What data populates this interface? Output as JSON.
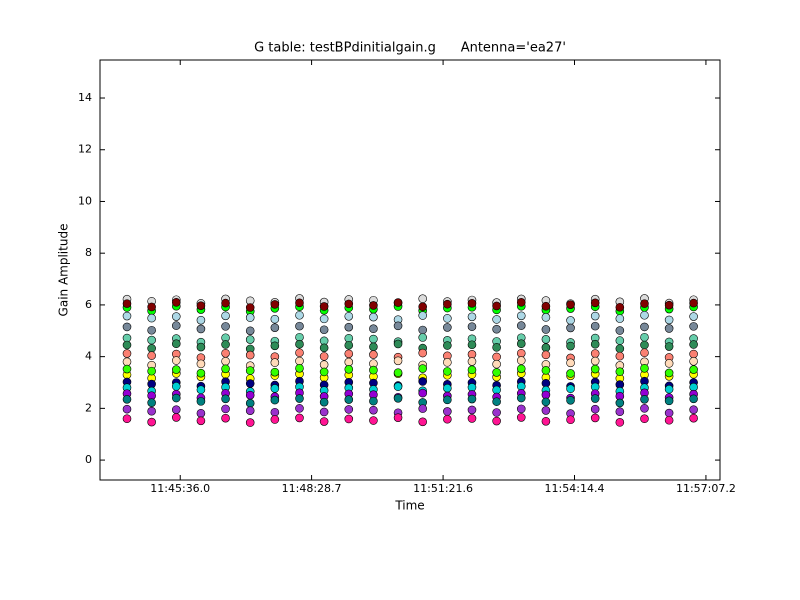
{
  "chart_data": {
    "type": "scatter",
    "title": "G table: testBPdinitialgain.g      Antenna='ea27'",
    "x_label": "Time",
    "y_label": "Gain Amplitude",
    "xlim": [
      42230.5,
      43045.7
    ],
    "ylim": [
      -0.77,
      15.47
    ],
    "xticks": [
      {
        "value": 42336,
        "label": "11:45:36.0"
      },
      {
        "value": 42508.7,
        "label": "11:48:28.7"
      },
      {
        "value": 42681.6,
        "label": "11:51:21.6"
      },
      {
        "value": 42854.4,
        "label": "11:54:14.4"
      },
      {
        "value": 43027.2,
        "label": "11:57:07.2"
      }
    ],
    "yticks": [
      0,
      2,
      4,
      6,
      8,
      10,
      12,
      14
    ],
    "x": [
      42266,
      42298.4,
      42330.8,
      42363.2,
      42395.6,
      42428,
      42460.4,
      42492.8,
      42525.2,
      42557.6,
      42590,
      42622.4,
      42654.8,
      42687.2,
      42719.6,
      42752,
      42784.4,
      42816.8,
      42849.2,
      42881.6,
      42914,
      42946.4,
      42978.8,
      43011
    ],
    "series": [
      {
        "color": "#dcdcdc",
        "values": [
          6.22,
          6.14,
          6.2,
          6.06,
          6.23,
          6.16,
          6.1,
          6.25,
          6.11,
          6.21,
          6.18,
          6.08,
          6.24,
          6.13,
          6.19,
          6.09,
          6.23,
          6.17,
          6.05,
          6.22,
          6.12,
          6.25,
          6.07,
          6.2
        ]
      },
      {
        "color": "#00ff00",
        "values": [
          5.9,
          5.77,
          5.95,
          5.82,
          5.92,
          5.75,
          5.87,
          5.93,
          5.79,
          5.89,
          5.83,
          5.94,
          5.78,
          5.88,
          5.91,
          5.81,
          5.95,
          5.8,
          5.86,
          5.93,
          5.76,
          5.9,
          5.84,
          5.92
        ]
      },
      {
        "color": "#800000",
        "values": [
          6.05,
          5.92,
          6.1,
          5.97,
          6.07,
          5.9,
          6.02,
          6.08,
          5.94,
          6.04,
          5.98,
          6.09,
          5.93,
          6.03,
          6.06,
          5.96,
          6.1,
          5.95,
          6.01,
          6.08,
          5.91,
          6.05,
          5.99,
          6.07
        ]
      },
      {
        "color": "#add8e6",
        "values": [
          5.57,
          5.49,
          5.55,
          5.41,
          5.58,
          5.51,
          5.45,
          5.6,
          5.46,
          5.56,
          5.53,
          5.43,
          5.59,
          5.48,
          5.54,
          5.44,
          5.58,
          5.52,
          5.4,
          5.57,
          5.47,
          5.6,
          5.42,
          5.55
        ]
      },
      {
        "color": "#778899",
        "values": [
          5.15,
          5.02,
          5.2,
          5.07,
          5.17,
          5.0,
          5.12,
          5.18,
          5.04,
          5.14,
          5.08,
          5.19,
          5.03,
          5.13,
          5.16,
          5.06,
          5.2,
          5.05,
          5.11,
          5.18,
          5.01,
          5.15,
          5.09,
          5.17
        ]
      },
      {
        "color": "#66cdaa",
        "values": [
          4.72,
          4.64,
          4.7,
          4.56,
          4.73,
          4.66,
          4.6,
          4.75,
          4.61,
          4.71,
          4.68,
          4.58,
          4.74,
          4.63,
          4.69,
          4.59,
          4.73,
          4.67,
          4.55,
          4.72,
          4.62,
          4.75,
          4.57,
          4.7
        ]
      },
      {
        "color": "#2e8b57",
        "values": [
          4.45,
          4.32,
          4.5,
          4.37,
          4.47,
          4.3,
          4.42,
          4.48,
          4.34,
          4.44,
          4.38,
          4.49,
          4.33,
          4.43,
          4.46,
          4.36,
          4.5,
          4.35,
          4.41,
          4.48,
          4.31,
          4.45,
          4.39,
          4.47
        ]
      },
      {
        "color": "#fa8072",
        "values": [
          4.12,
          4.04,
          4.1,
          3.96,
          4.13,
          4.06,
          4.0,
          4.15,
          4.01,
          4.11,
          4.08,
          3.98,
          4.14,
          4.03,
          4.09,
          3.99,
          4.13,
          4.07,
          3.95,
          4.12,
          4.02,
          4.15,
          3.97,
          4.1
        ]
      },
      {
        "color": "#ffdab9",
        "values": [
          3.8,
          3.67,
          3.85,
          3.72,
          3.82,
          3.65,
          3.77,
          3.83,
          3.69,
          3.79,
          3.73,
          3.84,
          3.68,
          3.78,
          3.81,
          3.71,
          3.85,
          3.7,
          3.76,
          3.83,
          3.66,
          3.8,
          3.74,
          3.82
        ]
      },
      {
        "color": "#ffff00",
        "values": [
          3.3,
          3.17,
          3.35,
          3.22,
          3.32,
          3.15,
          3.27,
          3.33,
          3.19,
          3.29,
          3.23,
          3.34,
          3.18,
          3.28,
          3.31,
          3.21,
          3.35,
          3.2,
          3.26,
          3.33,
          3.16,
          3.3,
          3.24,
          3.32
        ]
      },
      {
        "color": "#32ff00",
        "values": [
          3.52,
          3.44,
          3.5,
          3.36,
          3.53,
          3.46,
          3.4,
          3.55,
          3.41,
          3.51,
          3.48,
          3.38,
          3.54,
          3.43,
          3.49,
          3.39,
          3.53,
          3.47,
          3.35,
          3.52,
          3.42,
          3.55,
          3.37,
          3.5
        ]
      },
      {
        "color": "#000080",
        "values": [
          3.02,
          2.94,
          3.0,
          2.86,
          3.03,
          2.96,
          2.9,
          3.05,
          2.91,
          3.01,
          2.98,
          2.88,
          3.04,
          2.93,
          2.99,
          2.89,
          3.03,
          2.97,
          2.85,
          3.02,
          2.92,
          3.05,
          2.87,
          3.0
        ]
      },
      {
        "color": "#00ced1",
        "values": [
          2.8,
          2.67,
          2.85,
          2.72,
          2.82,
          2.65,
          2.77,
          2.83,
          2.69,
          2.79,
          2.73,
          2.84,
          2.68,
          2.78,
          2.81,
          2.71,
          2.85,
          2.7,
          2.76,
          2.83,
          2.66,
          2.8,
          2.74,
          2.82
        ]
      },
      {
        "color": "#9400d3",
        "values": [
          2.57,
          2.49,
          2.55,
          2.41,
          2.58,
          2.51,
          2.45,
          2.6,
          2.46,
          2.56,
          2.53,
          2.43,
          2.59,
          2.48,
          2.54,
          2.44,
          2.58,
          2.52,
          2.4,
          2.57,
          2.47,
          2.6,
          2.42,
          2.55
        ]
      },
      {
        "color": "#008080",
        "values": [
          2.35,
          2.22,
          2.4,
          2.27,
          2.37,
          2.2,
          2.32,
          2.38,
          2.24,
          2.34,
          2.28,
          2.39,
          2.23,
          2.33,
          2.36,
          2.26,
          2.4,
          2.25,
          2.31,
          2.38,
          2.21,
          2.35,
          2.29,
          2.37
        ]
      },
      {
        "color": "#9932cc",
        "values": [
          1.97,
          1.89,
          1.95,
          1.81,
          1.98,
          1.91,
          1.85,
          2.0,
          1.86,
          1.96,
          1.93,
          1.83,
          1.99,
          1.88,
          1.94,
          1.84,
          1.98,
          1.92,
          1.8,
          1.97,
          1.87,
          2.0,
          1.82,
          1.95
        ]
      },
      {
        "color": "#ff1493",
        "values": [
          1.6,
          1.47,
          1.65,
          1.52,
          1.62,
          1.45,
          1.57,
          1.63,
          1.49,
          1.59,
          1.53,
          1.64,
          1.48,
          1.58,
          1.61,
          1.51,
          1.65,
          1.5,
          1.56,
          1.63,
          1.46,
          1.6,
          1.54,
          1.62
        ]
      }
    ]
  }
}
